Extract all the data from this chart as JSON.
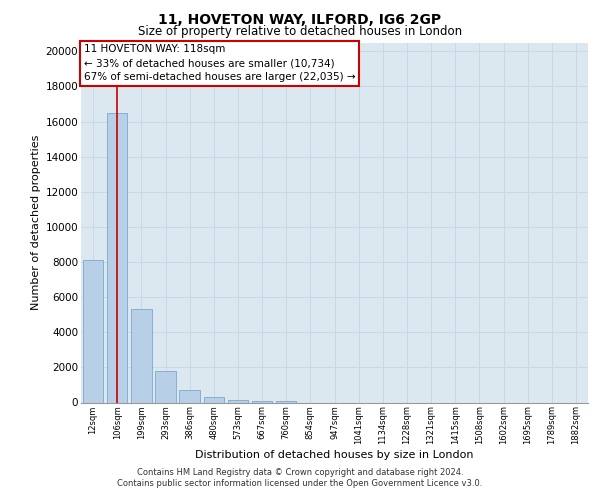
{
  "title1": "11, HOVETON WAY, ILFORD, IG6 2GP",
  "title2": "Size of property relative to detached houses in London",
  "xlabel": "Distribution of detached houses by size in London",
  "ylabel": "Number of detached properties",
  "categories": [
    "12sqm",
    "106sqm",
    "199sqm",
    "293sqm",
    "386sqm",
    "480sqm",
    "573sqm",
    "667sqm",
    "760sqm",
    "854sqm",
    "947sqm",
    "1041sqm",
    "1134sqm",
    "1228sqm",
    "1321sqm",
    "1415sqm",
    "1508sqm",
    "1602sqm",
    "1695sqm",
    "1789sqm",
    "1882sqm"
  ],
  "values": [
    8100,
    16500,
    5300,
    1800,
    700,
    300,
    150,
    100,
    70,
    0,
    0,
    0,
    0,
    0,
    0,
    0,
    0,
    0,
    0,
    0,
    0
  ],
  "bar_color": "#b8cfe8",
  "bar_edge_color": "#6e9dc8",
  "grid_color": "#c8d8e8",
  "bg_color": "#dce8f0",
  "vline_x": 1,
  "vline_color": "#cc0000",
  "annotation_text": "11 HOVETON WAY: 118sqm\n← 33% of detached houses are smaller (10,734)\n67% of semi-detached houses are larger (22,035) →",
  "annotation_box_color": "#ffffff",
  "annotation_border_color": "#cc0000",
  "footer_line1": "Contains HM Land Registry data © Crown copyright and database right 2024.",
  "footer_line2": "Contains public sector information licensed under the Open Government Licence v3.0.",
  "ylim": [
    0,
    20500
  ],
  "yticks": [
    0,
    2000,
    4000,
    6000,
    8000,
    10000,
    12000,
    14000,
    16000,
    18000,
    20000
  ]
}
